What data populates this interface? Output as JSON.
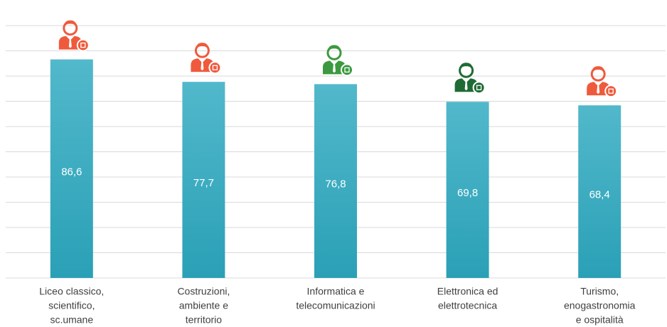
{
  "chart_data": {
    "type": "bar",
    "categories": [
      [
        "Liceo classico,",
        "scientifico,",
        "sc.umane"
      ],
      [
        "Costruzioni,",
        "ambiente e",
        "territorio"
      ],
      [
        "Informatica e",
        "telecomunicazioni"
      ],
      [
        "Elettronica ed",
        "elettrotecnica"
      ],
      [
        "Turismo,",
        "enogastronomia",
        "e ospitalità"
      ]
    ],
    "values": [
      86.6,
      77.7,
      76.8,
      69.8,
      68.4
    ],
    "value_labels": [
      "86,6",
      "77,7",
      "76,8",
      "69,8",
      "68,4"
    ],
    "color": "#36a9c0",
    "ylim": [
      0,
      100
    ],
    "yticks": [
      0,
      10,
      20,
      30,
      40,
      50,
      60,
      70,
      80,
      90,
      100
    ],
    "grid": true
  }
}
